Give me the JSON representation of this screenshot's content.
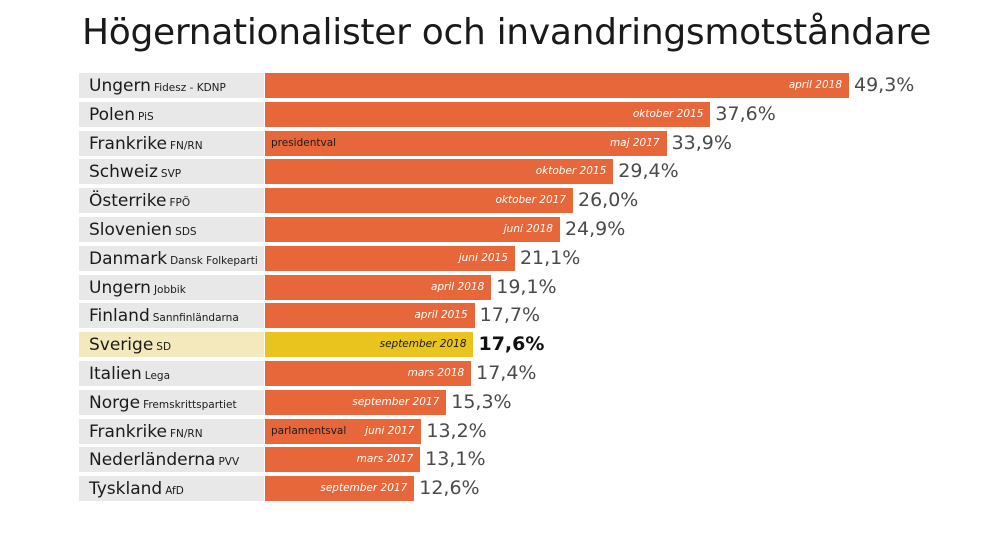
{
  "chart_data": {
    "type": "bar",
    "title": "Högernationalister och invandringsmotståndare",
    "xlim": [
      0,
      49.3
    ],
    "highlight_color": "#e9c41f",
    "bar_color": "#e8673a",
    "rows": [
      {
        "country": "Ungern",
        "party": "Fidesz - KDNP",
        "value": 49.3,
        "value_label": "49,3%",
        "date": "april 2018",
        "note": "",
        "highlight": false
      },
      {
        "country": "Polen",
        "party": "PiS",
        "value": 37.6,
        "value_label": "37,6%",
        "date": "oktober 2015",
        "note": "",
        "highlight": false
      },
      {
        "country": "Frankrike",
        "party": "FN/RN",
        "value": 33.9,
        "value_label": "33,9%",
        "date": "maj 2017",
        "note": "presidentval",
        "highlight": false
      },
      {
        "country": "Schweiz",
        "party": "SVP",
        "value": 29.4,
        "value_label": "29,4%",
        "date": "oktober 2015",
        "note": "",
        "highlight": false
      },
      {
        "country": "Österrike",
        "party": "FPÖ",
        "value": 26.0,
        "value_label": "26,0%",
        "date": "oktober 2017",
        "note": "",
        "highlight": false
      },
      {
        "country": "Slovenien",
        "party": "SDS",
        "value": 24.9,
        "value_label": "24,9%",
        "date": "juni 2018",
        "note": "",
        "highlight": false
      },
      {
        "country": "Danmark",
        "party": "Dansk Folkeparti",
        "value": 21.1,
        "value_label": "21,1%",
        "date": "juni 2015",
        "note": "",
        "highlight": false
      },
      {
        "country": "Ungern",
        "party": "Jobbik",
        "value": 19.1,
        "value_label": "19,1%",
        "date": "april 2018",
        "note": "",
        "highlight": false
      },
      {
        "country": "Finland",
        "party": "Sannfinländarna",
        "value": 17.7,
        "value_label": "17,7%",
        "date": "april 2015",
        "note": "",
        "highlight": false
      },
      {
        "country": "Sverige",
        "party": "SD",
        "value": 17.6,
        "value_label": "17,6%",
        "date": "september 2018",
        "note": "",
        "highlight": true
      },
      {
        "country": "Italien",
        "party": "Lega",
        "value": 17.4,
        "value_label": "17,4%",
        "date": "mars 2018",
        "note": "",
        "highlight": false
      },
      {
        "country": "Norge",
        "party": "Fremskrittspartiet",
        "value": 15.3,
        "value_label": "15,3%",
        "date": "september 2017",
        "note": "",
        "highlight": false
      },
      {
        "country": "Frankrike",
        "party": "FN/RN",
        "value": 13.2,
        "value_label": "13,2%",
        "date": "juni 2017",
        "note": "parlamentsval",
        "highlight": false
      },
      {
        "country": "Nederländerna",
        "party": "PVV",
        "value": 13.1,
        "value_label": "13,1%",
        "date": "mars 2017",
        "note": "",
        "highlight": false
      },
      {
        "country": "Tyskland",
        "party": "AfD",
        "value": 12.6,
        "value_label": "12,6%",
        "date": "september 2017",
        "note": "",
        "highlight": false
      }
    ]
  }
}
